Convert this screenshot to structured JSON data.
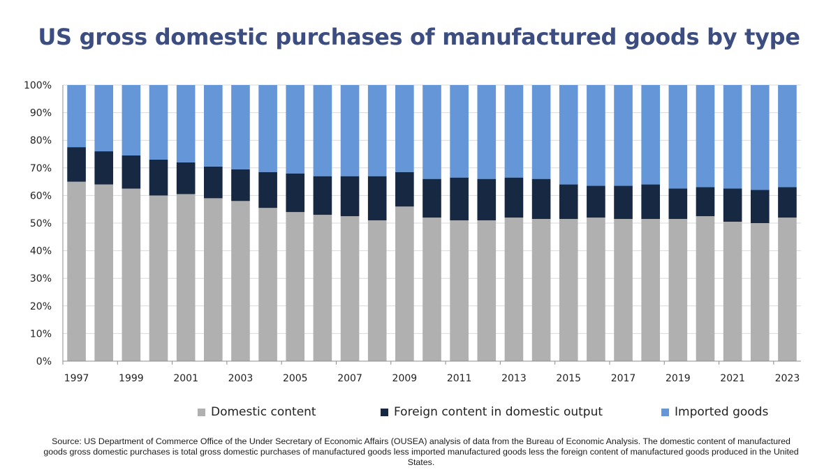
{
  "title": "US gross domestic purchases of manufactured goods by type",
  "source": "Source: US Department of Commerce Office of the Under Secretary of Economic Affairs (OUSEA) analysis of data from the Bureau of Economic Analysis. The domestic content of manufactured goods gross domestic purchases is total gross domestic purchases of manufactured goods less imported manufactured goods less the foreign content of manufactured goods produced in the United States.",
  "colors": {
    "domestic": "#b0b0b0",
    "foreign": "#172842",
    "imported": "#6597d8",
    "title": "#3c4d82"
  },
  "chart_data": {
    "type": "bar",
    "stacked": true,
    "percent": true,
    "categories": [
      "1997",
      "1998",
      "1999",
      "2000",
      "2001",
      "2002",
      "2003",
      "2004",
      "2005",
      "2006",
      "2007",
      "2008",
      "2009",
      "2010",
      "2011",
      "2012",
      "2013",
      "2014",
      "2015",
      "2016",
      "2017",
      "2018",
      "2019",
      "2020",
      "2021",
      "2022",
      "2023"
    ],
    "x_tick_labels": [
      "1997",
      "",
      "1999",
      "",
      "2001",
      "",
      "2003",
      "",
      "2005",
      "",
      "2007",
      "",
      "2009",
      "",
      "2011",
      "",
      "2013",
      "",
      "2015",
      "",
      "2017",
      "",
      "2019",
      "",
      "2021",
      "",
      "2023"
    ],
    "y_ticks": [
      "0%",
      "10%",
      "20%",
      "30%",
      "40%",
      "50%",
      "60%",
      "70%",
      "80%",
      "90%",
      "100%"
    ],
    "ylim": [
      0,
      100
    ],
    "grid": true,
    "legend_position": "bottom",
    "series": [
      {
        "name": "Domestic content",
        "key": "domestic",
        "values": [
          65,
          64,
          62.5,
          60,
          60.5,
          59,
          58,
          55.5,
          54,
          53,
          52.5,
          51,
          56,
          52,
          51,
          51,
          52,
          51.5,
          51.5,
          52,
          51.5,
          51.5,
          51.5,
          52.5,
          50.5,
          50,
          52
        ]
      },
      {
        "name": "Foreign content in domestic output",
        "key": "foreign",
        "values": [
          12.5,
          12,
          12,
          13,
          11.5,
          11.5,
          11.5,
          13,
          14,
          14,
          14.5,
          16,
          12.5,
          14,
          15.5,
          15,
          14.5,
          14.5,
          12.5,
          11.5,
          12,
          12.5,
          11,
          10.5,
          12,
          12,
          11
        ]
      },
      {
        "name": "Imported goods",
        "key": "imported",
        "values": [
          22.5,
          24,
          25.5,
          27,
          28,
          29.5,
          30.5,
          31.5,
          32,
          33,
          33,
          33,
          31.5,
          34,
          33.5,
          34,
          33.5,
          34,
          36,
          36.5,
          36.5,
          36,
          37.5,
          37,
          37.5,
          38,
          37
        ]
      }
    ]
  }
}
